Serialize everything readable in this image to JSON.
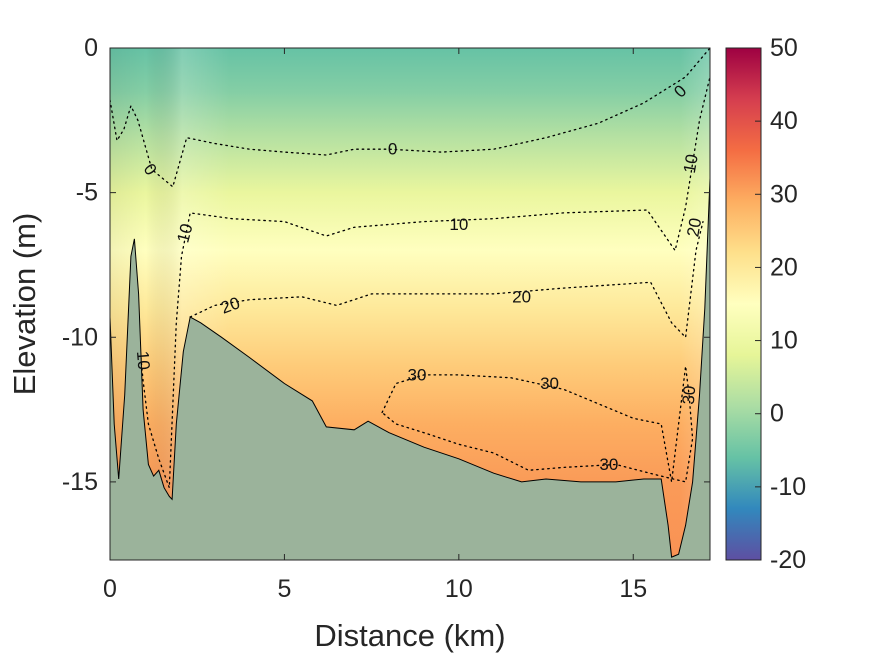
{
  "chart_data": {
    "type": "heatmap",
    "xlabel": "Distance (km)",
    "ylabel": "Elevation (m)",
    "xlim": [
      0,
      17.2
    ],
    "ylim": [
      -17.7,
      0
    ],
    "x_ticks": [
      "0",
      "5",
      "10",
      "15"
    ],
    "x_tick_values": [
      0,
      5,
      10,
      15
    ],
    "y_ticks": [
      "0",
      "-5",
      "-10",
      "-15"
    ],
    "y_tick_values": [
      0,
      -5,
      -10,
      -15
    ],
    "colorbar": {
      "range": [
        -20,
        50
      ],
      "ticks": [
        "50",
        "40",
        "30",
        "20",
        "10",
        "0",
        "-10",
        "-20"
      ],
      "tick_values": [
        50,
        40,
        30,
        20,
        10,
        0,
        -10,
        -20
      ],
      "colormap": [
        "#5e4fa2",
        "#3288bd",
        "#66c2a5",
        "#abdda4",
        "#e6f598",
        "#ffffbf",
        "#fee08b",
        "#fdae61",
        "#f46d43",
        "#d53e4f",
        "#9e0142"
      ]
    },
    "field_profile": {
      "depth": [
        0,
        -1.5,
        -3,
        -5,
        -7,
        -9,
        -11,
        -13,
        -15,
        -17.7
      ],
      "value": [
        -6,
        -3,
        2,
        9,
        15,
        20,
        25,
        29,
        31,
        32
      ]
    },
    "bathymetry_color": "#9bb39b",
    "bathymetry": [
      [
        0,
        -9.3
      ],
      [
        0.12,
        -13
      ],
      [
        0.25,
        -14.9
      ],
      [
        0.42,
        -12
      ],
      [
        0.6,
        -7.2
      ],
      [
        0.7,
        -6.6
      ],
      [
        0.82,
        -8.5
      ],
      [
        0.95,
        -12.5
      ],
      [
        1.1,
        -14.4
      ],
      [
        1.25,
        -14.8
      ],
      [
        1.4,
        -14.6
      ],
      [
        1.55,
        -15.2
      ],
      [
        1.7,
        -15.5
      ],
      [
        1.78,
        -15.6
      ],
      [
        1.9,
        -13
      ],
      [
        2.1,
        -10.5
      ],
      [
        2.3,
        -9.3
      ],
      [
        2.6,
        -9.5
      ],
      [
        3.2,
        -10
      ],
      [
        4,
        -10.7
      ],
      [
        5,
        -11.6
      ],
      [
        5.8,
        -12.2
      ],
      [
        6.2,
        -13.1
      ],
      [
        7,
        -13.2
      ],
      [
        7.4,
        -12.9
      ],
      [
        8,
        -13.3
      ],
      [
        9,
        -13.8
      ],
      [
        10,
        -14.2
      ],
      [
        11,
        -14.7
      ],
      [
        11.8,
        -15
      ],
      [
        12.5,
        -14.9
      ],
      [
        13.5,
        -15
      ],
      [
        14.5,
        -15
      ],
      [
        15.3,
        -14.9
      ],
      [
        15.8,
        -14.9
      ],
      [
        16,
        -16.5
      ],
      [
        16.1,
        -17.6
      ],
      [
        16.3,
        -17.5
      ],
      [
        16.5,
        -16.5
      ],
      [
        16.7,
        -15
      ],
      [
        16.9,
        -12
      ],
      [
        17.05,
        -9
      ],
      [
        17.2,
        -4.5
      ]
    ],
    "contours": [
      {
        "label": "0",
        "points": [
          [
            0,
            -1.8
          ],
          [
            0.2,
            -3.2
          ],
          [
            0.4,
            -2.8
          ],
          [
            0.6,
            -2
          ],
          [
            0.8,
            -2.5
          ],
          [
            1.2,
            -4.2
          ],
          [
            1.8,
            -4.8
          ],
          [
            2.2,
            -3.1
          ],
          [
            3,
            -3.3
          ],
          [
            4,
            -3.5
          ],
          [
            5,
            -3.6
          ],
          [
            6.2,
            -3.7
          ],
          [
            7,
            -3.5
          ],
          [
            8,
            -3.5
          ],
          [
            9.5,
            -3.6
          ],
          [
            11,
            -3.5
          ],
          [
            12.5,
            -3.1
          ],
          [
            14,
            -2.6
          ],
          [
            15.3,
            -1.9
          ],
          [
            16.5,
            -1
          ],
          [
            17.2,
            0
          ]
        ],
        "labels": [
          {
            "x": 1.15,
            "y": -4.2,
            "rot": 55
          },
          {
            "x": 8.1,
            "y": -3.5,
            "rot": 0
          },
          {
            "x": 16.35,
            "y": -1.5,
            "rot": -45
          }
        ]
      },
      {
        "label": "10",
        "points": [
          [
            0.75,
            -9
          ],
          [
            0.95,
            -11.5
          ],
          [
            1.1,
            -13
          ],
          [
            1.4,
            -14.2
          ],
          [
            1.7,
            -15.2
          ],
          [
            1.9,
            -9.5
          ],
          [
            2.05,
            -7.2
          ],
          [
            2.3,
            -5.7
          ],
          [
            3.5,
            -5.9
          ],
          [
            5,
            -6
          ],
          [
            6.2,
            -6.5
          ],
          [
            7,
            -6.2
          ],
          [
            9,
            -6
          ],
          [
            11,
            -5.9
          ],
          [
            13,
            -5.7
          ],
          [
            15.4,
            -5.6
          ],
          [
            16.2,
            -7
          ],
          [
            16.5,
            -5.5
          ],
          [
            16.9,
            -2.5
          ],
          [
            17.2,
            -1
          ]
        ],
        "labels": [
          {
            "x": 0.95,
            "y": -10.8,
            "rot": 85
          },
          {
            "x": 2.15,
            "y": -6.4,
            "rot": -75
          },
          {
            "x": 10,
            "y": -6.1,
            "rot": 0
          },
          {
            "x": 16.65,
            "y": -4,
            "rot": -80
          }
        ]
      },
      {
        "label": "20",
        "points": [
          [
            2.3,
            -9.3
          ],
          [
            3,
            -8.9
          ],
          [
            4,
            -8.7
          ],
          [
            5.5,
            -8.6
          ],
          [
            6.5,
            -8.9
          ],
          [
            7.5,
            -8.5
          ],
          [
            9,
            -8.5
          ],
          [
            11,
            -8.5
          ],
          [
            13,
            -8.3
          ],
          [
            15.5,
            -8.1
          ],
          [
            16.1,
            -9.5
          ],
          [
            16.5,
            -10
          ],
          [
            16.8,
            -7
          ],
          [
            17,
            -6
          ]
        ],
        "labels": [
          {
            "x": 3.45,
            "y": -8.9,
            "rot": -20
          },
          {
            "x": 11.8,
            "y": -8.6,
            "rot": 0
          },
          {
            "x": 16.75,
            "y": -6.2,
            "rot": -80
          }
        ]
      },
      {
        "label": "30",
        "points": [
          [
            7.8,
            -12.6
          ],
          [
            8.2,
            -11.6
          ],
          [
            9,
            -11.3
          ],
          [
            10,
            -11.3
          ],
          [
            11.5,
            -11.4
          ],
          [
            13,
            -11.8
          ],
          [
            14,
            -12.3
          ],
          [
            15,
            -12.8
          ],
          [
            15.8,
            -13
          ],
          [
            16.1,
            -15
          ],
          [
            16.3,
            -13
          ],
          [
            16.5,
            -11
          ],
          [
            16.6,
            -12
          ],
          [
            16.7,
            -13.5
          ],
          [
            16.5,
            -15
          ],
          [
            15.8,
            -14.8
          ],
          [
            14.5,
            -14.4
          ],
          [
            13,
            -14.5
          ],
          [
            12,
            -14.6
          ],
          [
            11,
            -14
          ],
          [
            10,
            -13.7
          ],
          [
            9,
            -13.3
          ],
          [
            8.2,
            -13
          ],
          [
            7.8,
            -12.6
          ]
        ],
        "labels": [
          {
            "x": 8.8,
            "y": -11.3,
            "rot": 0
          },
          {
            "x": 12.6,
            "y": -11.6,
            "rot": 0
          },
          {
            "x": 14.3,
            "y": -14.4,
            "rot": 0
          },
          {
            "x": 16.6,
            "y": -12,
            "rot": -85
          }
        ]
      }
    ]
  }
}
